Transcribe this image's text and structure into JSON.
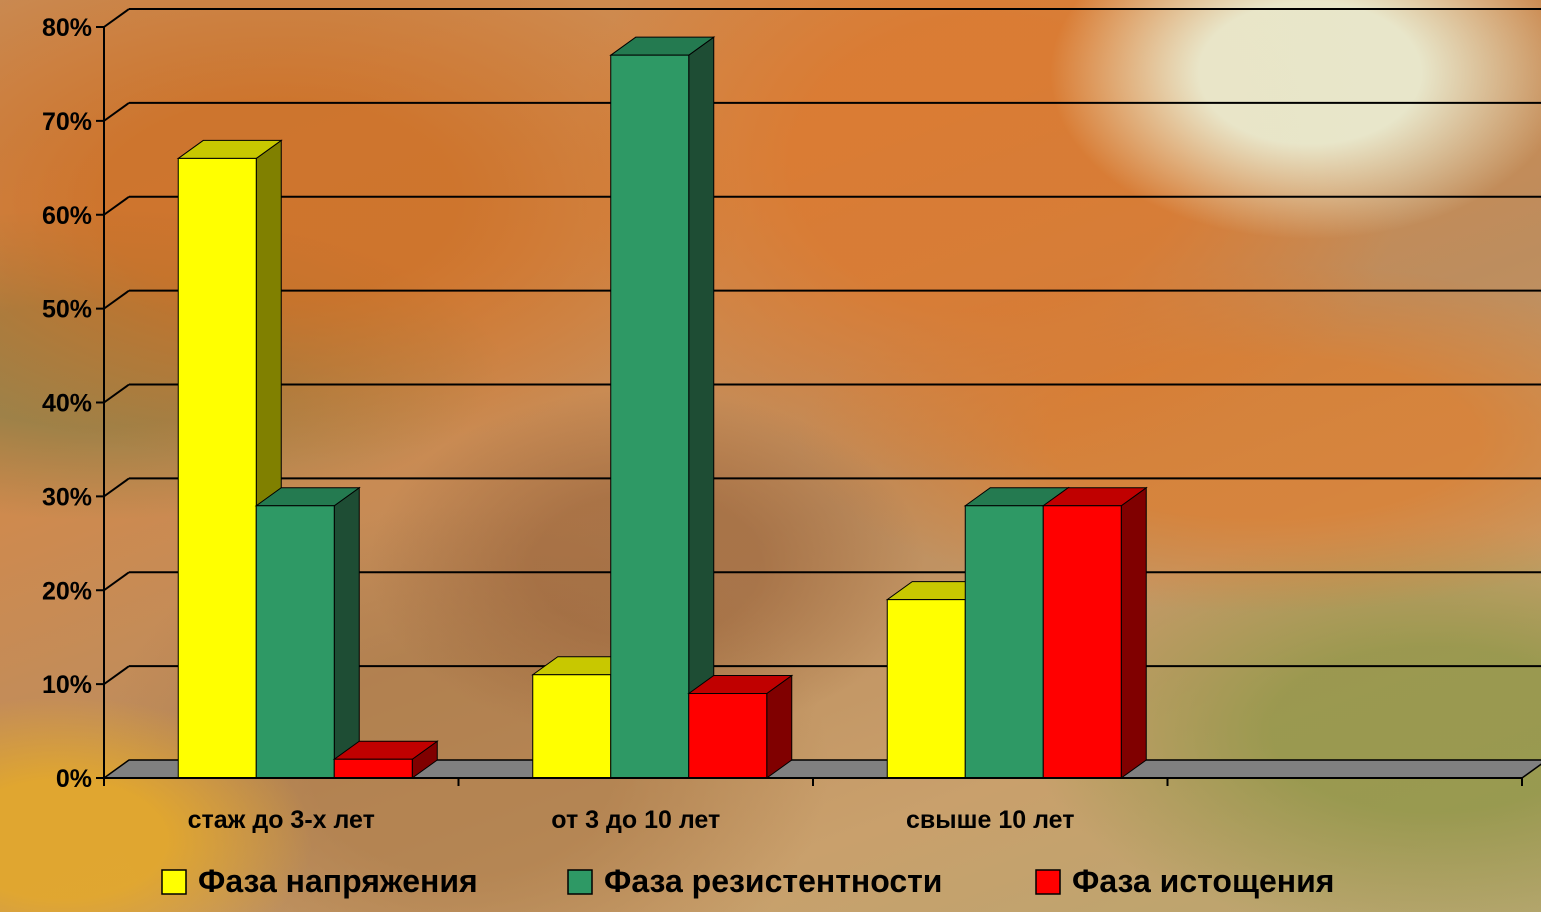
{
  "chart_data": {
    "type": "bar",
    "style": "3d-clustered-column",
    "categories": [
      "стаж до 3-х лет",
      "от 3  до 10 лет",
      "свыше 10 лет",
      ""
    ],
    "series": [
      {
        "name": "Фаза напряжения",
        "values": [
          66,
          11,
          19,
          null
        ],
        "color": "#FFFF00",
        "side_color": "#808000"
      },
      {
        "name": "Фаза резистентности",
        "values": [
          29,
          77,
          29,
          null
        ],
        "color": "#2E9965",
        "side_color": "#1E4D34"
      },
      {
        "name": "Фаза истощения",
        "values": [
          2,
          9,
          29,
          null
        ],
        "color": "#FF0000",
        "side_color": "#800000"
      }
    ],
    "ylim": [
      0,
      80
    ],
    "yticks": [
      0,
      10,
      20,
      30,
      40,
      50,
      60,
      70,
      80
    ],
    "ytick_labels": [
      "0%",
      "10%",
      "20%",
      "30%",
      "40%",
      "50%",
      "60%",
      "70%",
      "80%"
    ],
    "grid": true,
    "legend_position": "bottom",
    "title": "",
    "xlabel": "",
    "ylabel": ""
  },
  "colors": {
    "gridline": "#000000",
    "floor": "#808080",
    "text": "#000000"
  }
}
